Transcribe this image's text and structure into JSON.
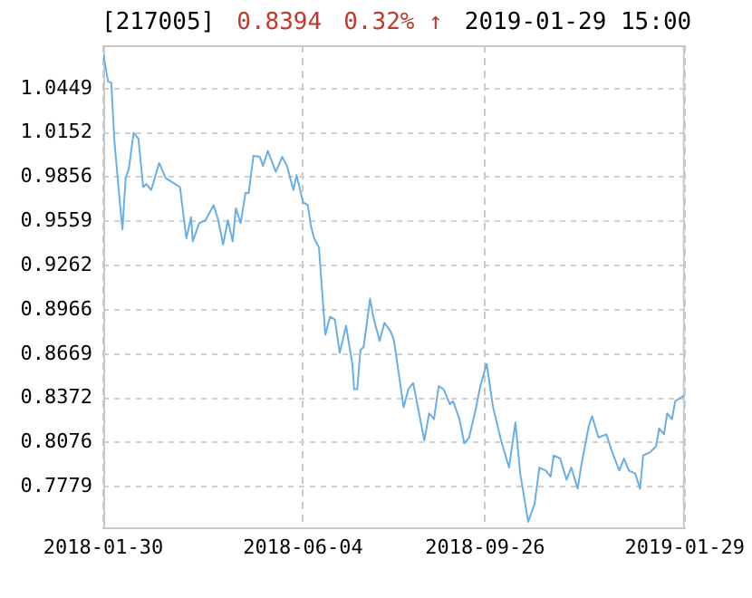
{
  "chart_data": {
    "type": "line",
    "title": "[217005]",
    "annotations": [
      "0.8394",
      "0.32% ↑",
      "2019-01-29 15:00"
    ],
    "x": [
      "2018-01-30",
      "2018-02-02",
      "2018-02-04",
      "2018-02-06",
      "2018-02-09",
      "2018-02-11",
      "2018-02-13",
      "2018-02-15",
      "2018-02-18",
      "2018-02-21",
      "2018-02-24",
      "2018-02-26",
      "2018-03-01",
      "2018-03-06",
      "2018-03-10",
      "2018-03-16",
      "2018-03-19",
      "2018-03-23",
      "2018-03-26",
      "2018-03-27",
      "2018-03-31",
      "2018-04-04",
      "2018-04-09",
      "2018-04-12",
      "2018-04-15",
      "2018-04-18",
      "2018-04-21",
      "2018-04-23",
      "2018-04-26",
      "2018-04-29",
      "2018-05-01",
      "2018-05-04",
      "2018-05-08",
      "2018-05-10",
      "2018-05-13",
      "2018-05-18",
      "2018-05-22",
      "2018-05-25",
      "2018-05-29",
      "2018-05-31",
      "2018-06-04",
      "2018-06-07",
      "2018-06-09",
      "2018-06-11",
      "2018-06-14",
      "2018-06-18",
      "2018-06-21",
      "2018-06-24",
      "2018-06-27",
      "2018-07-01",
      "2018-07-05",
      "2018-07-06",
      "2018-07-08",
      "2018-07-10",
      "2018-07-12",
      "2018-07-16",
      "2018-07-18",
      "2018-07-22",
      "2018-07-25",
      "2018-07-29",
      "2018-07-31",
      "2018-08-06",
      "2018-08-09",
      "2018-08-12",
      "2018-08-19",
      "2018-08-22",
      "2018-08-25",
      "2018-08-28",
      "2018-08-31",
      "2018-09-04",
      "2018-09-06",
      "2018-09-10",
      "2018-09-13",
      "2018-09-16",
      "2018-09-20",
      "2018-09-23",
      "2018-09-27",
      "2018-10-01",
      "2018-10-06",
      "2018-10-11",
      "2018-10-15",
      "2018-10-18",
      "2018-10-23",
      "2018-10-27",
      "2018-10-30",
      "2018-11-03",
      "2018-11-06",
      "2018-11-08",
      "2018-11-12",
      "2018-11-16",
      "2018-11-19",
      "2018-11-23",
      "2018-11-25",
      "2018-11-30",
      "2018-12-02",
      "2018-12-06",
      "2018-12-11",
      "2018-12-14",
      "2018-12-19",
      "2018-12-22",
      "2018-12-25",
      "2018-12-29",
      "2019-01-01",
      "2019-01-03",
      "2019-01-07",
      "2019-01-11",
      "2019-01-13",
      "2019-01-16",
      "2019-01-18",
      "2019-01-21",
      "2019-01-23",
      "2019-01-29"
    ],
    "series": [
      {
        "color": "#6aaee6",
        "values": [
          1.068,
          1.0498,
          1.0489,
          1.0093,
          0.9729,
          0.9506,
          0.985,
          0.9911,
          1.0154,
          1.0113,
          0.9789,
          0.981,
          0.9769,
          0.9951,
          0.985,
          0.981,
          0.9789,
          0.9446,
          0.9587,
          0.9425,
          0.9547,
          0.9567,
          0.9668,
          0.9567,
          0.9405,
          0.9567,
          0.9425,
          0.9648,
          0.9547,
          0.9749,
          0.9749,
          0.9998,
          0.9992,
          0.9931,
          1.0032,
          0.9891,
          0.9992,
          0.9931,
          0.9769,
          0.987,
          0.9688,
          0.9668,
          0.9526,
          0.9446,
          0.9385,
          0.8798,
          0.892,
          0.8899,
          0.8677,
          0.8859,
          0.8596,
          0.8434,
          0.8434,
          0.8697,
          0.8717,
          0.9041,
          0.892,
          0.8758,
          0.8879,
          0.8819,
          0.8758,
          0.8313,
          0.8434,
          0.8475,
          0.809,
          0.8272,
          0.8232,
          0.8454,
          0.8434,
          0.8333,
          0.8353,
          0.8232,
          0.807,
          0.811,
          0.8292,
          0.8454,
          0.8604,
          0.8313,
          0.809,
          0.7908,
          0.8211,
          0.7868,
          0.7544,
          0.7665,
          0.7908,
          0.7888,
          0.7847,
          0.7989,
          0.7969,
          0.7827,
          0.7908,
          0.7766,
          0.7908,
          0.8191,
          0.8252,
          0.811,
          0.8131,
          0.8029,
          0.7888,
          0.7969,
          0.7888,
          0.7868,
          0.7766,
          0.7989,
          0.8009,
          0.805,
          0.8171,
          0.8131,
          0.8272,
          0.8232,
          0.8353,
          0.8394
        ]
      }
    ],
    "xlim": [
      "2018-01-30",
      "2019-01-29"
    ],
    "xticks": [
      "2018-01-30",
      "2018-06-04",
      "2018-09-26",
      "2019-01-29"
    ],
    "ylim": [
      0.7495,
      1.074
    ],
    "yticks": [
      {
        "value": 0.7779,
        "label": "0.7779"
      },
      {
        "value": 0.8076,
        "label": "0.8076"
      },
      {
        "value": 0.8372,
        "label": "0.8372"
      },
      {
        "value": 0.8669,
        "label": "0.8669"
      },
      {
        "value": 0.8966,
        "label": "0.8966"
      },
      {
        "value": 0.9262,
        "label": "0.9262"
      },
      {
        "value": 0.9559,
        "label": "0.9559"
      },
      {
        "value": 0.9856,
        "label": "0.9856"
      },
      {
        "value": 1.0152,
        "label": "1.0152"
      },
      {
        "value": 1.0449,
        "label": "1.0449"
      }
    ],
    "grid": true,
    "marker": "none",
    "line_style": "solid",
    "legend": false
  }
}
